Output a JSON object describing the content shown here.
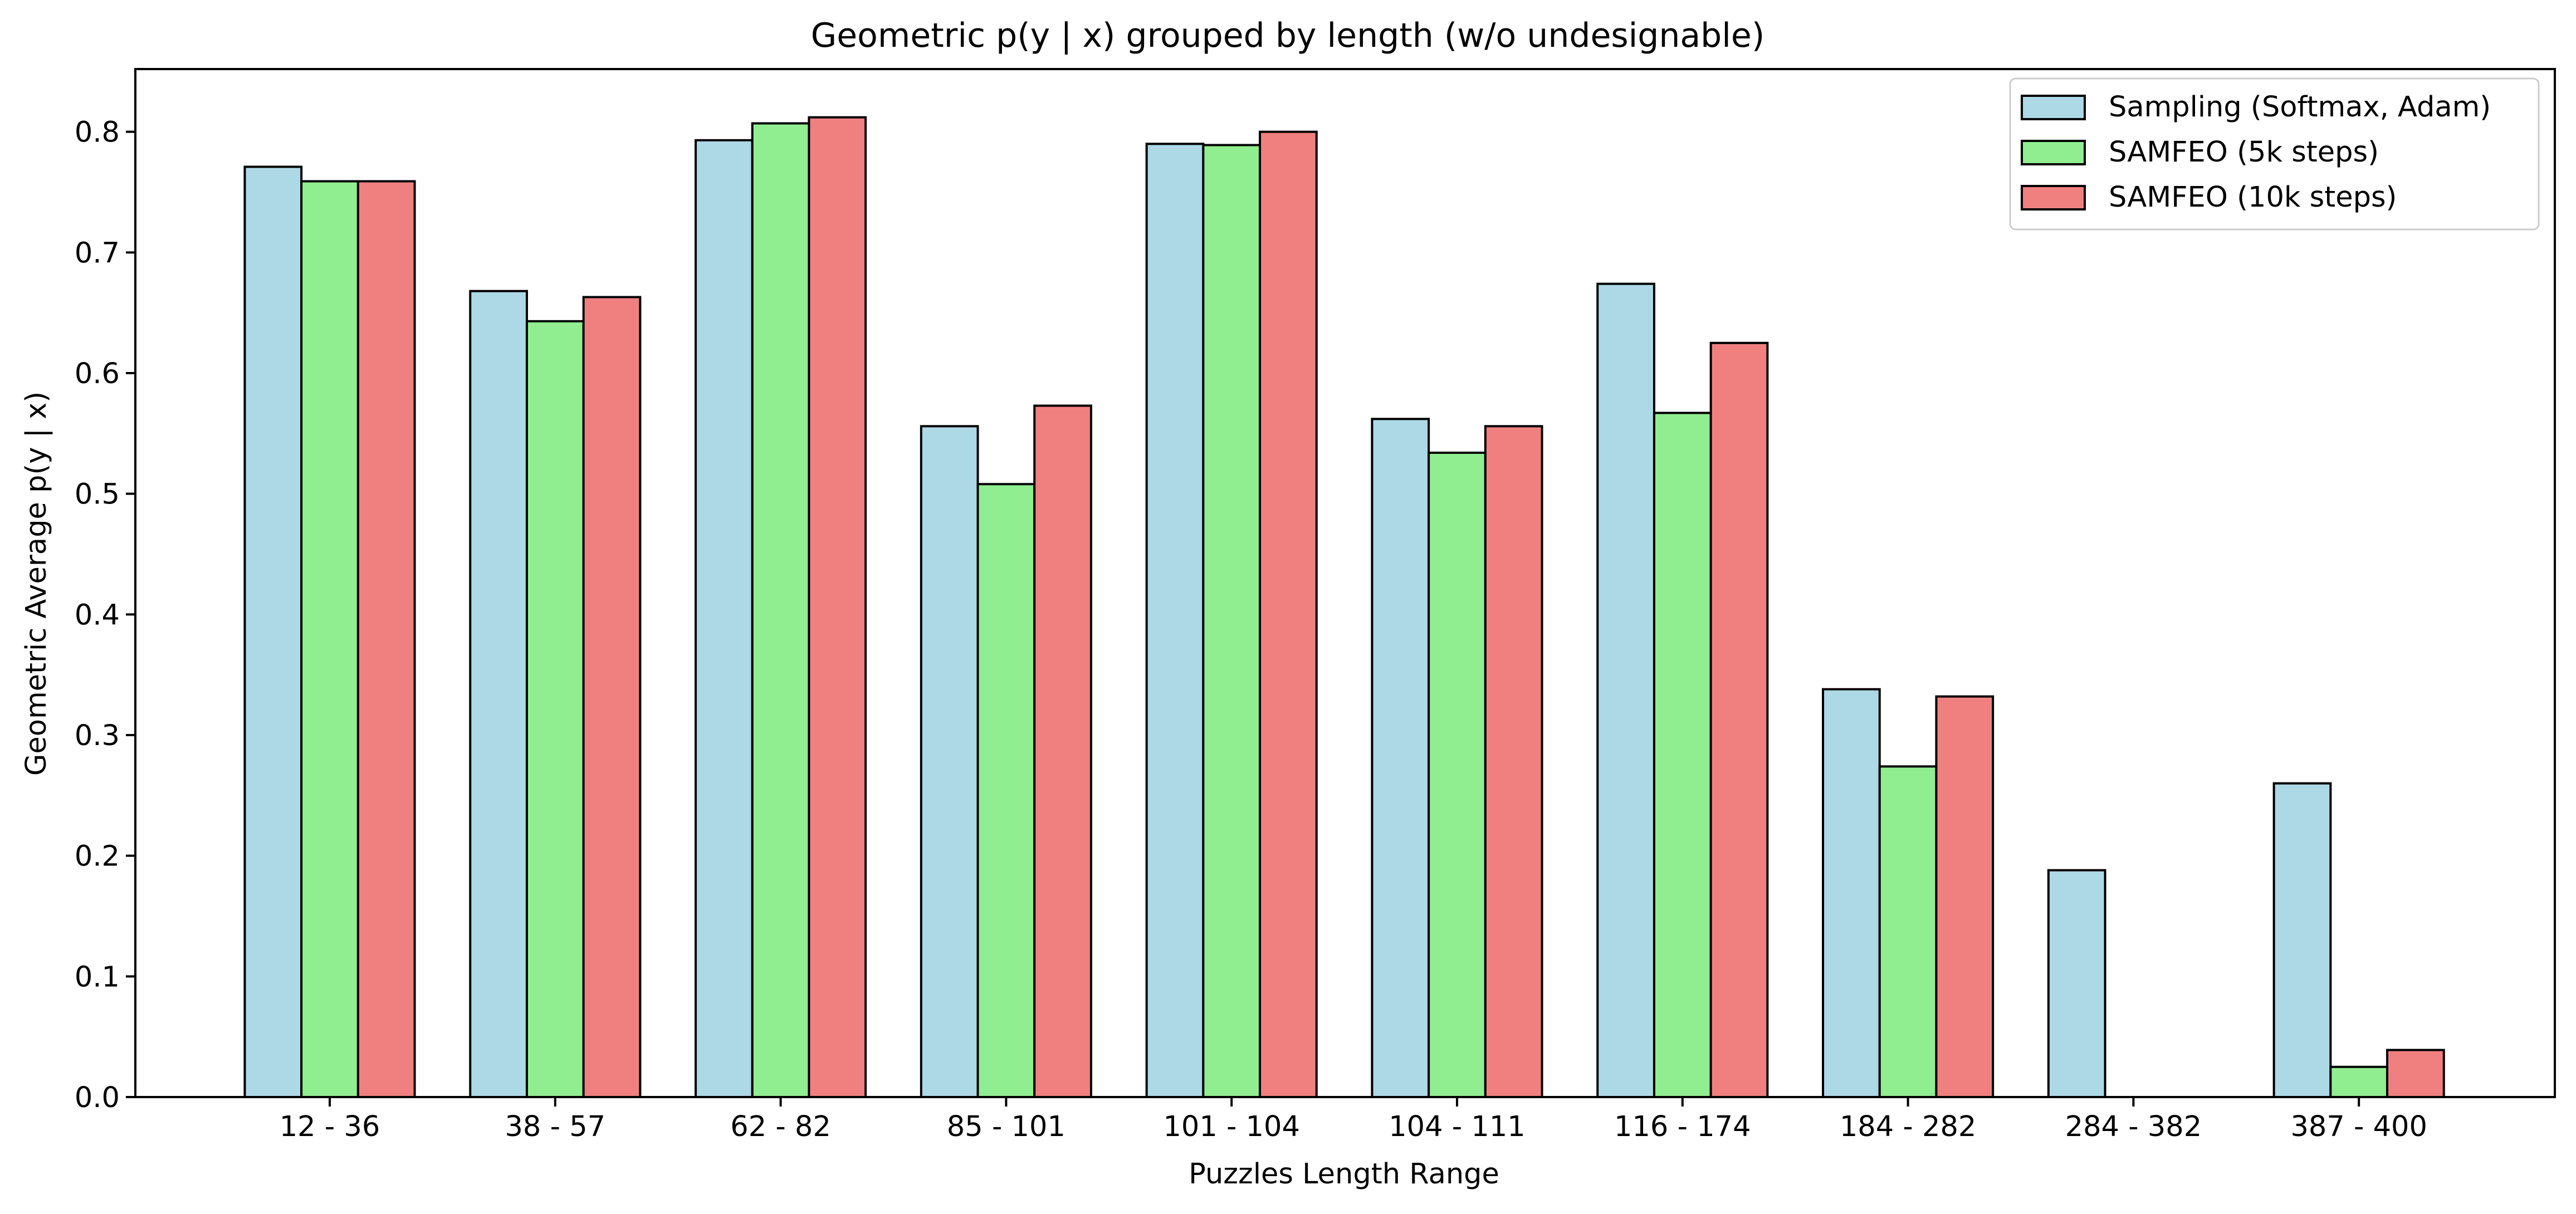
{
  "chart_data": {
    "type": "bar",
    "title": "Geometric p(y | x) grouped by length (w/o undesignable)",
    "xlabel": "Puzzles Length Range",
    "ylabel": "Geometric Average p(y | x)",
    "categories": [
      "12 - 36",
      "38 - 57",
      "62 - 82",
      "85 - 101",
      "101 - 104",
      "104 - 111",
      "116 - 174",
      "184 - 282",
      "284 - 382",
      "387 - 400"
    ],
    "series": [
      {
        "name": "Sampling (Softmax, Adam)",
        "color": "#add8e6",
        "values": [
          0.771,
          0.668,
          0.793,
          0.556,
          0.79,
          0.562,
          0.674,
          0.338,
          0.188,
          0.26
        ]
      },
      {
        "name": "SAMFEO (5k steps)",
        "color": "#90ee90",
        "values": [
          0.759,
          0.643,
          0.807,
          0.508,
          0.789,
          0.534,
          0.567,
          0.274,
          0.0,
          0.025
        ]
      },
      {
        "name": "SAMFEO (10k steps)",
        "color": "#f08080",
        "values": [
          0.759,
          0.663,
          0.812,
          0.573,
          0.8,
          0.556,
          0.625,
          0.332,
          0.0,
          0.039
        ]
      }
    ],
    "ylim": [
      0,
      0.852
    ],
    "yticks": [
      0.0,
      0.1,
      0.2,
      0.3,
      0.4,
      0.5,
      0.6,
      0.7,
      0.8
    ],
    "grid": false,
    "legend_position": "top-right"
  }
}
